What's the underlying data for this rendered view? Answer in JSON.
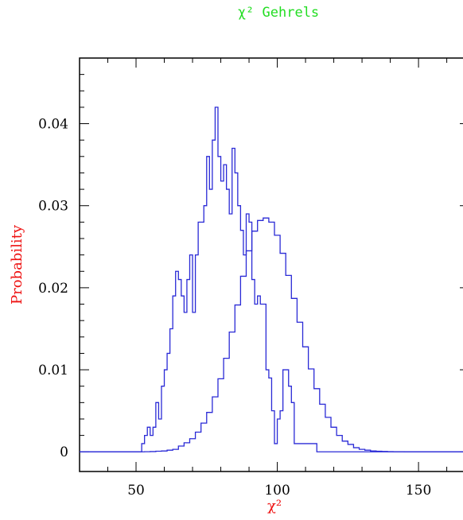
{
  "chart_data": {
    "type": "histogram",
    "title": "χ² Gehrels",
    "xlabel": "χ²",
    "ylabel": "Probability",
    "xlim": [
      30,
      168
    ],
    "ylim": [
      -0.0024,
      0.048
    ],
    "x_ticks": [
      50,
      100,
      150
    ],
    "y_ticks": [
      0,
      0.01,
      0.02,
      0.03,
      0.04
    ],
    "y_tick_labels": [
      "0",
      "0.01",
      "0.02",
      "0.03",
      "0.04"
    ],
    "x_tick_labels": [
      "50",
      "100",
      "150"
    ],
    "colors": {
      "series": "#2a2ad6",
      "title": "#22dd22",
      "axis_labels": "#ee1111"
    },
    "series": [
      {
        "style": "steps",
        "x": [
          30,
          52,
          53,
          54,
          55,
          56,
          57,
          58,
          59,
          60,
          61,
          62,
          63,
          64,
          65,
          66,
          67,
          68,
          69,
          70,
          71,
          72,
          73,
          74,
          75,
          76,
          77,
          78,
          79,
          80,
          81,
          82,
          83,
          84,
          85,
          86,
          87,
          88,
          89,
          90,
          91,
          92,
          93,
          94,
          95,
          96,
          97,
          98,
          99,
          100,
          101,
          102,
          103,
          104,
          105,
          106,
          107,
          108,
          109,
          110,
          111,
          112,
          113,
          114,
          168
        ],
        "y": [
          0,
          0.001,
          0.002,
          0.003,
          0.002,
          0.003,
          0.006,
          0.004,
          0.008,
          0.01,
          0.012,
          0.015,
          0.019,
          0.022,
          0.021,
          0.019,
          0.017,
          0.021,
          0.024,
          0.017,
          0.024,
          0.028,
          0.028,
          0.03,
          0.036,
          0.032,
          0.038,
          0.042,
          0.036,
          0.033,
          0.035,
          0.032,
          0.029,
          0.037,
          0.034,
          0.03,
          0.027,
          0.024,
          0.029,
          0.028,
          0.021,
          0.018,
          0.019,
          0.018,
          0.018,
          0.01,
          0.009,
          0.005,
          0.001,
          0.004,
          0.005,
          0.01,
          0.01,
          0.008,
          0.006,
          0.001,
          0.001,
          0.001,
          0.001,
          0.001,
          0.001,
          0.001,
          0.001,
          0,
          0
        ]
      },
      {
        "style": "steps",
        "x": [
          30,
          53,
          55,
          57,
          59,
          61,
          63,
          65,
          67,
          69,
          71,
          73,
          75,
          77,
          79,
          81,
          83,
          85,
          87,
          89,
          91,
          93,
          95,
          97,
          99,
          101,
          103,
          105,
          107,
          109,
          111,
          113,
          115,
          117,
          119,
          121,
          123,
          125,
          127,
          129,
          131,
          133,
          135,
          137,
          139,
          141,
          143,
          145,
          147,
          149,
          151,
          153,
          155,
          157,
          168
        ],
        "y": [
          0,
          1e-05,
          3e-05,
          7e-05,
          0.0001,
          0.0002,
          0.0003,
          0.0007,
          0.0011,
          0.0016,
          0.0024,
          0.0035,
          0.0048,
          0.0067,
          0.0089,
          0.0114,
          0.0146,
          0.0179,
          0.0214,
          0.0245,
          0.0269,
          0.0282,
          0.0285,
          0.028,
          0.0264,
          0.0242,
          0.0215,
          0.0187,
          0.0158,
          0.0128,
          0.0101,
          0.0077,
          0.0058,
          0.0042,
          0.003,
          0.002,
          0.0013,
          0.0009,
          0.0005,
          0.0003,
          0.0002,
          0.0001,
          7e-05,
          4e-05,
          2e-05,
          1e-05,
          1e-05,
          0,
          0,
          0,
          0,
          0,
          0,
          0,
          0
        ]
      }
    ]
  }
}
